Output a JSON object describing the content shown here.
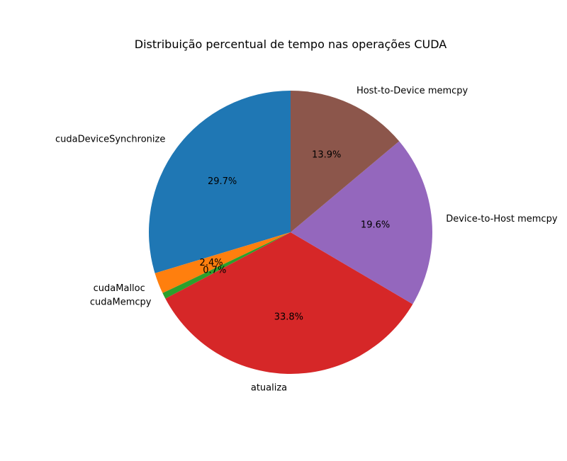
{
  "chart_data": {
    "type": "pie",
    "title": "Distribuição percentual de tempo nas operações CUDA",
    "slices": [
      {
        "label": "cudaDeviceSynchronize",
        "value": 29.7,
        "pct_label": "29.7%",
        "color": "#1f77b4"
      },
      {
        "label": "cudaMalloc",
        "value": 2.4,
        "pct_label": "2.4%",
        "color": "#ff7f0e"
      },
      {
        "label": "cudaMemcpy",
        "value": 0.7,
        "pct_label": "0.7%",
        "color": "#2ca02c"
      },
      {
        "label": "atualiza",
        "value": 33.8,
        "pct_label": "33.8%",
        "color": "#d62728"
      },
      {
        "label": "Device-to-Host memcpy",
        "value": 19.6,
        "pct_label": "19.6%",
        "color": "#9467bd"
      },
      {
        "label": "Host-to-Device memcpy",
        "value": 13.9,
        "pct_label": "13.9%",
        "color": "#8c564b"
      }
    ],
    "start_angle_deg": 90,
    "direction": "counterclockwise"
  }
}
